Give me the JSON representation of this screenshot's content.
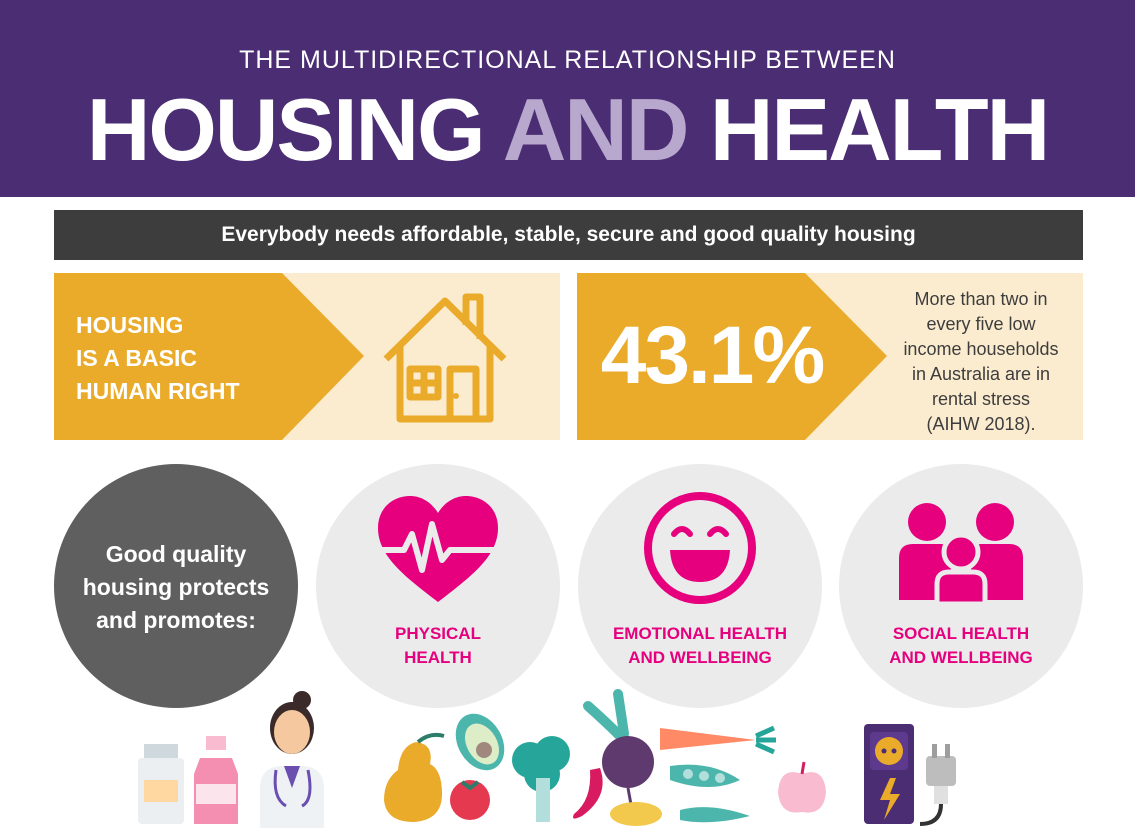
{
  "header": {
    "subtitle": "THE MULTIDIRECTIONAL RELATIONSHIP BETWEEN",
    "title_part1": "HOUSING",
    "title_part2": "AND",
    "title_part3": "HEALTH"
  },
  "banner": {
    "text": "Everybody needs affordable, stable, secure and good quality housing"
  },
  "housing_panel": {
    "line1": "HOUSING",
    "line2": "IS A BASIC",
    "line3": "HUMAN RIGHT",
    "icon": "house-icon"
  },
  "stat_panel": {
    "value": "43.1%",
    "line1": "More than two in",
    "line2": "every five low",
    "line3": "income households",
    "line4": "in Australia are in",
    "line5": "rental stress",
    "line6": "(AIHW 2018)."
  },
  "promotes": {
    "line1": "Good quality",
    "line2": "housing protects",
    "line3": "and promotes:"
  },
  "categories": [
    {
      "line1": "PHYSICAL",
      "line2": "HEALTH",
      "icon": "heartbeat-icon"
    },
    {
      "line1": "EMOTIONAL HEALTH",
      "line2": "AND WELLBEING",
      "icon": "smiley-icon"
    },
    {
      "line1": "SOCIAL HEALTH",
      "line2": "AND WELLBEING",
      "icon": "family-icon"
    }
  ],
  "colors": {
    "purple": "#4a2d72",
    "lavender": "#b9a8ce",
    "gold": "#eaaa2a",
    "cream": "#fbecd0",
    "magenta": "#e6007e",
    "dark": "#3d3d3d"
  }
}
